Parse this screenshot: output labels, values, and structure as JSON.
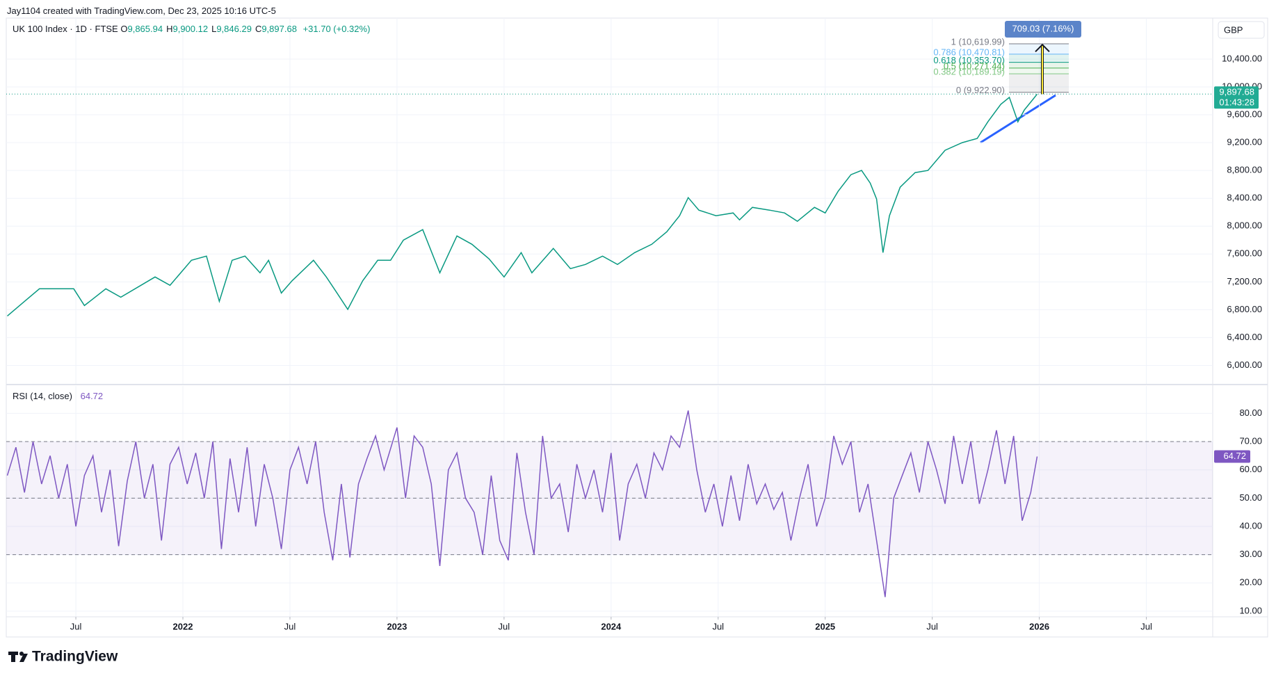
{
  "header": {
    "credit": "Jay1104 created with TradingView.com, Dec 23, 2025 10:16 UTC-5",
    "symbol": "UK 100 Index · 1D · FTSE",
    "ohlc": [
      {
        "key": "O",
        "value": "9,865.94"
      },
      {
        "key": "H",
        "value": "9,900.12"
      },
      {
        "key": "L",
        "value": "9,846.29"
      },
      {
        "key": "C",
        "value": "9,897.68"
      }
    ],
    "change": "+31.70 (+0.32%)"
  },
  "currency": "GBP",
  "logo": "TradingView",
  "chart_data": [
    {
      "type": "line",
      "color": "#089981",
      "x": [
        2021.18,
        2021.26,
        2021.33,
        2021.49,
        2021.54,
        2021.64,
        2021.71,
        2021.87,
        2021.94,
        2022.04,
        2022.11,
        2022.17,
        2022.23,
        2022.29,
        2022.36,
        2022.4,
        2022.46,
        2022.51,
        2022.61,
        2022.67,
        2022.72,
        2022.77,
        2022.84,
        2022.91,
        2022.97,
        2023.03,
        2023.12,
        2023.2,
        2023.28,
        2023.35,
        2023.43,
        2023.5,
        2023.58,
        2023.63,
        2023.73,
        2023.81,
        2023.88,
        2023.96,
        2024.03,
        2024.11,
        2024.19,
        2024.26,
        2024.32,
        2024.36,
        2024.41,
        2024.49,
        2024.57,
        2024.6,
        2024.66,
        2024.74,
        2024.81,
        2024.87,
        2024.95,
        2025.0,
        2025.06,
        2025.12,
        2025.17,
        2025.21,
        2025.24,
        2025.27,
        2025.3,
        2025.35,
        2025.42,
        2025.48,
        2025.56,
        2025.64,
        2025.71,
        2025.76,
        2025.82,
        2025.86,
        2025.9,
        2025.93,
        2025.97,
        2025.99
      ],
      "values": [
        6710,
        6920,
        7100,
        7100,
        6860,
        7100,
        6980,
        7270,
        7150,
        7510,
        7570,
        6920,
        7510,
        7570,
        7330,
        7510,
        7040,
        7215,
        7510,
        7270,
        7040,
        6805,
        7215,
        7510,
        7510,
        7800,
        7950,
        7330,
        7860,
        7740,
        7530,
        7270,
        7620,
        7330,
        7680,
        7390,
        7450,
        7570,
        7450,
        7620,
        7740,
        7920,
        8150,
        8410,
        8230,
        8150,
        8190,
        8090,
        8270,
        8230,
        8190,
        8070,
        8270,
        8190,
        8500,
        8740,
        8800,
        8620,
        8390,
        7620,
        8150,
        8560,
        8770,
        8800,
        9090,
        9200,
        9260,
        9500,
        9750,
        9850,
        9500,
        9670,
        9820,
        9897.68
      ],
      "xlim": [
        2021.175,
        2026.81
      ],
      "ylim": [
        5735,
        10989
      ],
      "yticks": [
        {
          "value": 6000,
          "label": "6,000.00"
        },
        {
          "value": 6400,
          "label": "6,400.00"
        },
        {
          "value": 6800,
          "label": "6,800.00"
        },
        {
          "value": 7200,
          "label": "7,200.00"
        },
        {
          "value": 7600,
          "label": "7,600.00"
        },
        {
          "value": 8000,
          "label": "8,000.00"
        },
        {
          "value": 8400,
          "label": "8,400.00"
        },
        {
          "value": 8800,
          "label": "8,800.00"
        },
        {
          "value": 9200,
          "label": "9,200.00"
        },
        {
          "value": 9600,
          "label": "9,600.00"
        },
        {
          "value": 10000,
          "label": "10,000.00"
        },
        {
          "value": 10400,
          "label": "10,400.00"
        }
      ],
      "grid": true,
      "last_price": {
        "value": 9897.68,
        "label": "9,897.68"
      },
      "countdown": "01:43:28",
      "fib_levels": [
        {
          "value": 10619.99,
          "label": "1 (10,619.99)",
          "color": "#787b86"
        },
        {
          "value": 10470.81,
          "label": "0.786 (10,470.81)",
          "color": "#64b5f6"
        },
        {
          "value": 10353.7,
          "label": "0.618 (10,353.70)",
          "color": "#089981"
        },
        {
          "value": 10271.44,
          "label": "0.5 (10,271.44)",
          "color": "#4caf50"
        },
        {
          "value": 10189.19,
          "label": "0.382 (10,189.19)",
          "color": "#81c784"
        },
        {
          "value": 9922.9,
          "label": "0 (9,922.90)",
          "color": "#787b86"
        }
      ],
      "measure": {
        "value": 709.03,
        "label": "709.03 (7.16%)"
      }
    },
    {
      "type": "line",
      "title": "RSI (14, close)",
      "color": "#7e57c2",
      "x": [
        2021.18,
        2021.22,
        2021.26,
        2021.3,
        2021.34,
        2021.38,
        2021.42,
        2021.46,
        2021.5,
        2021.54,
        2021.58,
        2021.62,
        2021.66,
        2021.7,
        2021.74,
        2021.78,
        2021.82,
        2021.86,
        2021.9,
        2021.94,
        2021.98,
        2022.02,
        2022.06,
        2022.1,
        2022.14,
        2022.18,
        2022.22,
        2022.26,
        2022.3,
        2022.34,
        2022.38,
        2022.42,
        2022.46,
        2022.5,
        2022.54,
        2022.58,
        2022.62,
        2022.66,
        2022.7,
        2022.74,
        2022.78,
        2022.82,
        2022.86,
        2022.9,
        2022.94,
        2023.0,
        2023.04,
        2023.08,
        2023.12,
        2023.16,
        2023.2,
        2023.24,
        2023.28,
        2023.32,
        2023.36,
        2023.4,
        2023.44,
        2023.48,
        2023.52,
        2023.56,
        2023.6,
        2023.64,
        2023.68,
        2023.72,
        2023.76,
        2023.8,
        2023.84,
        2023.88,
        2023.92,
        2023.96,
        2024.0,
        2024.04,
        2024.08,
        2024.12,
        2024.16,
        2024.2,
        2024.24,
        2024.28,
        2024.32,
        2024.36,
        2024.4,
        2024.44,
        2024.48,
        2024.52,
        2024.56,
        2024.6,
        2024.64,
        2024.68,
        2024.72,
        2024.76,
        2024.8,
        2024.84,
        2024.88,
        2024.92,
        2024.96,
        2025.0,
        2025.04,
        2025.08,
        2025.12,
        2025.16,
        2025.2,
        2025.24,
        2025.28,
        2025.32,
        2025.36,
        2025.4,
        2025.44,
        2025.48,
        2025.52,
        2025.56,
        2025.6,
        2025.64,
        2025.68,
        2025.72,
        2025.76,
        2025.8,
        2025.84,
        2025.88,
        2025.92,
        2025.96,
        2025.99
      ],
      "values": [
        58,
        68,
        52,
        70,
        55,
        65,
        50,
        62,
        40,
        58,
        65,
        45,
        60,
        33,
        56,
        70,
        50,
        62,
        35,
        62,
        68,
        55,
        66,
        50,
        70,
        32,
        64,
        45,
        68,
        40,
        62,
        50,
        32,
        60,
        68,
        55,
        70,
        45,
        28,
        55,
        29,
        55,
        64,
        72,
        60,
        75,
        50,
        72,
        68,
        55,
        26,
        60,
        66,
        50,
        45,
        30,
        58,
        35,
        28,
        66,
        45,
        30,
        72,
        50,
        55,
        38,
        62,
        50,
        60,
        45,
        66,
        35,
        55,
        62,
        50,
        66,
        60,
        72,
        68,
        81,
        60,
        45,
        55,
        40,
        58,
        42,
        62,
        48,
        55,
        46,
        52,
        35,
        50,
        62,
        40,
        50,
        72,
        62,
        70,
        45,
        55,
        35,
        15,
        50,
        58,
        66,
        52,
        70,
        60,
        48,
        72,
        55,
        70,
        48,
        60,
        74,
        55,
        72,
        42,
        52,
        64.72
      ],
      "xlim": [
        2021.175,
        2026.81
      ],
      "xticks": [
        {
          "value": 2021.5,
          "label": "Jul"
        },
        2022,
        {
          "value": 2022.5,
          "label": "Jul"
        },
        2023,
        {
          "value": 2023.5,
          "label": "Jul"
        },
        2024,
        {
          "value": 2024.5,
          "label": "Jul"
        },
        2025,
        {
          "value": 2025.5,
          "label": "Jul"
        },
        2026,
        {
          "value": 2026.5,
          "label": "Jul"
        }
      ],
      "ylim": [
        8,
        89.7
      ],
      "yticks": [
        {
          "value": 10,
          "label": "10.00"
        },
        {
          "value": 20,
          "label": "20.00"
        },
        {
          "value": 30,
          "label": "30.00"
        },
        {
          "value": 40,
          "label": "40.00"
        },
        {
          "value": 50,
          "label": "50.00"
        },
        {
          "value": 60,
          "label": "60.00"
        },
        {
          "value": 70,
          "label": "70.00"
        },
        {
          "value": 80,
          "label": "80.00"
        }
      ],
      "levels": [
        70,
        50,
        30
      ],
      "grid": true
    }
  ]
}
